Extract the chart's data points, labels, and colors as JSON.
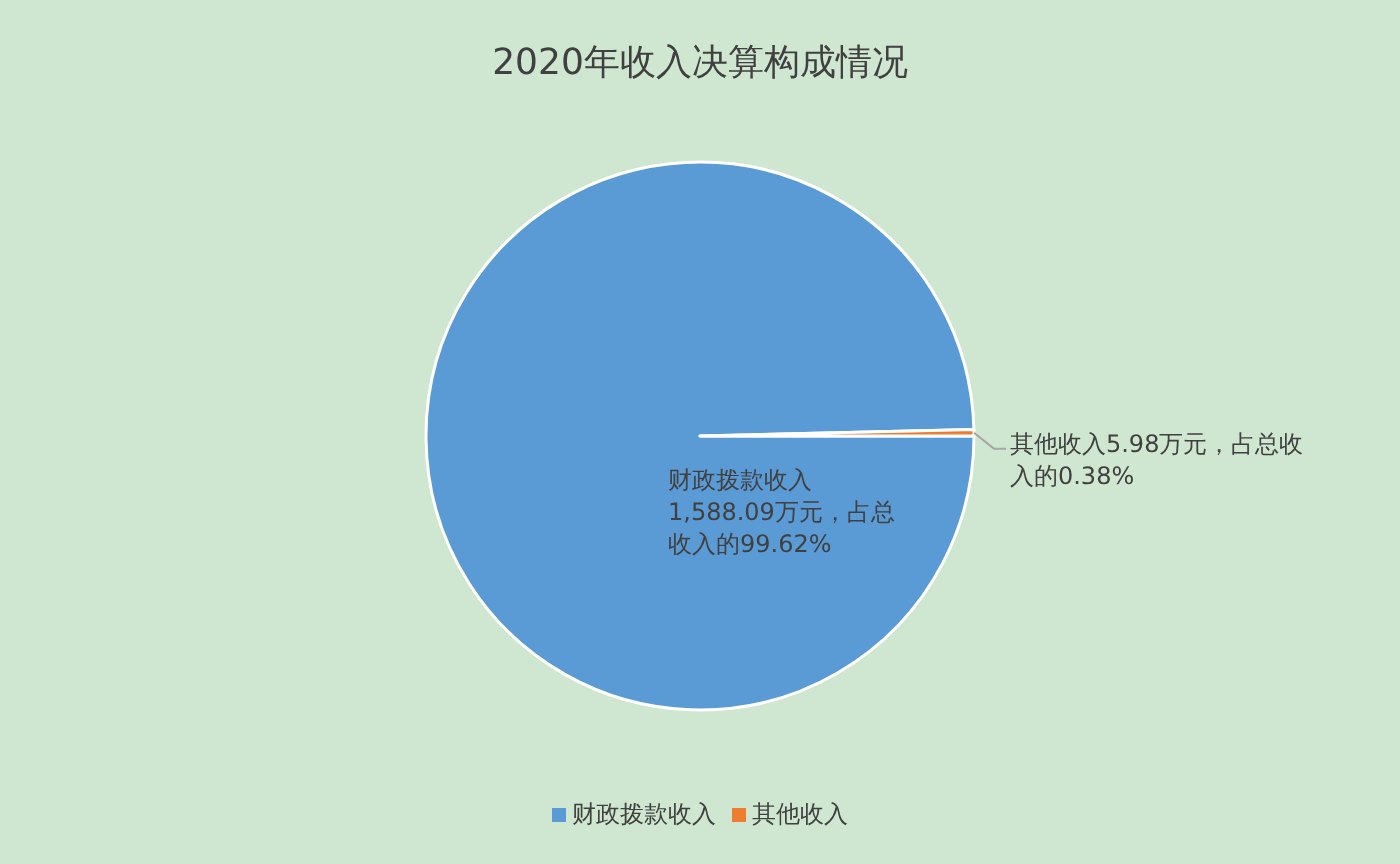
{
  "chart_data": {
    "type": "pie",
    "title": "2020年收入决算构成情况",
    "categories": [
      "财政拨款收入",
      "其他收入"
    ],
    "values": [
      1588.09,
      5.98
    ],
    "colors": [
      "#5b9bd5",
      "#ed7d31"
    ],
    "value_labels": [
      "财政拨款收入1,588.09万元，占总收入的99.62%",
      "其他收入5.98万元，占总收入的0.38%"
    ],
    "legend": "bottom"
  }
}
